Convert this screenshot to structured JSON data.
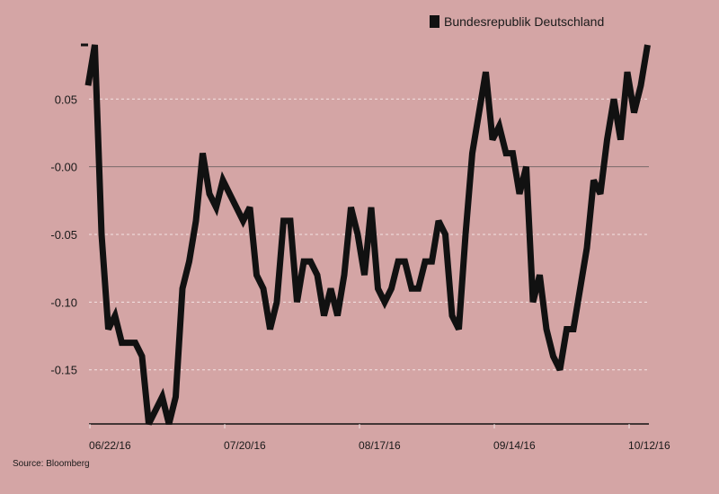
{
  "chart_data": {
    "type": "line",
    "title": "",
    "xlabel": "",
    "ylabel": "",
    "ylim": [
      -0.19,
      0.09
    ],
    "grid": true,
    "legend_position": "top-right",
    "series": [
      {
        "name": "Bundesrepublik Deutschland",
        "color": "#111111",
        "values": [
          0.06,
          0.09,
          -0.05,
          -0.12,
          -0.11,
          -0.13,
          -0.13,
          -0.13,
          -0.14,
          -0.19,
          -0.18,
          -0.17,
          -0.19,
          -0.17,
          -0.09,
          -0.07,
          -0.04,
          0.01,
          -0.02,
          -0.03,
          -0.01,
          -0.02,
          -0.03,
          -0.04,
          -0.03,
          -0.08,
          -0.09,
          -0.12,
          -0.1,
          -0.04,
          -0.04,
          -0.1,
          -0.07,
          -0.07,
          -0.08,
          -0.11,
          -0.09,
          -0.11,
          -0.08,
          -0.03,
          -0.05,
          -0.08,
          -0.03,
          -0.09,
          -0.1,
          -0.09,
          -0.07,
          -0.07,
          -0.09,
          -0.09,
          -0.07,
          -0.07,
          -0.04,
          -0.05,
          -0.11,
          -0.12,
          -0.05,
          0.01,
          0.04,
          0.07,
          0.02,
          0.03,
          0.01,
          0.01,
          -0.02,
          0.0,
          -0.1,
          -0.08,
          -0.12,
          -0.14,
          -0.15,
          -0.12,
          -0.12,
          -0.09,
          -0.06,
          -0.01,
          -0.02,
          0.02,
          0.05,
          0.02,
          0.07,
          0.04,
          0.06,
          0.09
        ]
      }
    ],
    "y_ticks": [
      {
        "value": 0.05,
        "label": "0.05"
      },
      {
        "value": 0.0,
        "label": "-0.00"
      },
      {
        "value": -0.05,
        "label": "-0.05"
      },
      {
        "value": -0.1,
        "label": "-0.10"
      },
      {
        "value": -0.15,
        "label": "-0.15"
      }
    ],
    "x_ticks": [
      {
        "index": 0.27,
        "label": "06/22/16"
      },
      {
        "index": 20.27,
        "label": "07/20/16"
      },
      {
        "index": 40.27,
        "label": "08/17/16"
      },
      {
        "index": 60.27,
        "label": "09/14/16"
      },
      {
        "index": 80.27,
        "label": "10/12/16"
      }
    ],
    "source": "Source: Bloomberg"
  }
}
